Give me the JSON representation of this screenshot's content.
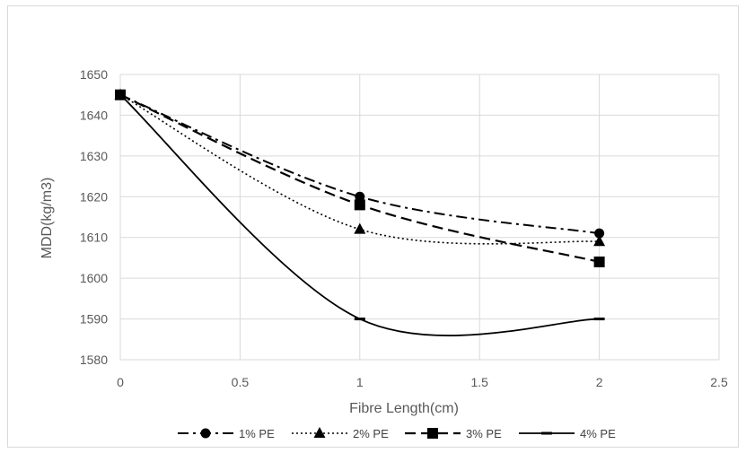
{
  "chart_data": {
    "type": "line",
    "title": "",
    "xlabel": "Fibre Length(cm)",
    "ylabel": "MDD(kg/m3)",
    "x_ticks": [
      "0",
      "0.5",
      "1",
      "1.5",
      "2",
      "2.5"
    ],
    "y_ticks": [
      "1580",
      "1590",
      "1600",
      "1610",
      "1620",
      "1630",
      "1640",
      "1650"
    ],
    "xlim": [
      0,
      2.5
    ],
    "ylim": [
      1580,
      1650
    ],
    "grid": "on",
    "legend_position": "bottom",
    "x": [
      0,
      1,
      2
    ],
    "series": [
      {
        "name": "1% PE",
        "values": [
          1645,
          1620,
          1611
        ],
        "marker": "circle",
        "dash": "dash-dot"
      },
      {
        "name": "2% PE",
        "values": [
          1645,
          1612,
          1609
        ],
        "marker": "triangle",
        "dash": "dotted"
      },
      {
        "name": "3% PE",
        "values": [
          1645,
          1618,
          1604
        ],
        "marker": "square",
        "dash": "dashed"
      },
      {
        "name": "4% PE",
        "values": [
          1645,
          1590,
          1590
        ],
        "marker": "dash",
        "dash": "solid"
      }
    ],
    "colors": {
      "series": "#000000",
      "grid": "#d9d9d9",
      "text": "#595959"
    }
  }
}
